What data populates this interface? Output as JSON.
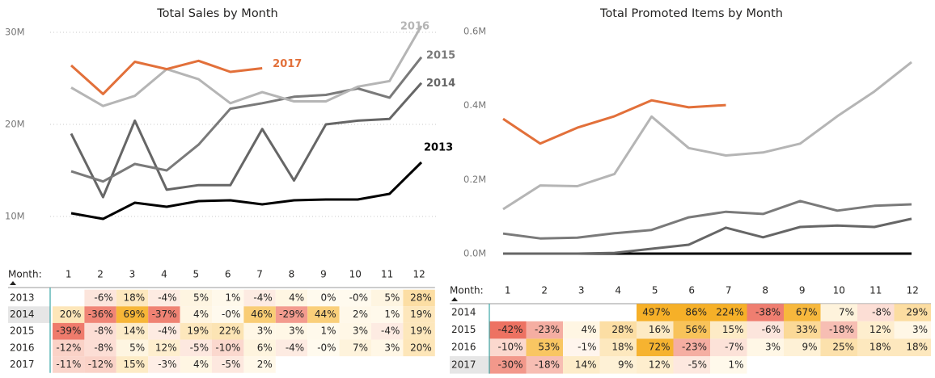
{
  "chart_data": [
    {
      "type": "line",
      "title": "Total Sales by Month",
      "grid": true,
      "end_labels": true,
      "x": [
        1,
        2,
        3,
        4,
        5,
        6,
        7,
        8,
        9,
        10,
        11,
        12
      ],
      "xlim": [
        1,
        12
      ],
      "ylim": [
        9000000,
        31000000
      ],
      "yticks": [
        {
          "value": 10000000,
          "label": "10M"
        },
        {
          "value": 20000000,
          "label": "20M"
        },
        {
          "value": 30000000,
          "label": "30M"
        }
      ],
      "series": [
        {
          "name": "2013",
          "color": "#000000",
          "values": [
            10350000,
            9740000,
            11490000,
            11050000,
            11670000,
            11750000,
            11320000,
            11750000,
            11840000,
            11840000,
            12460000,
            15880000
          ]
        },
        {
          "name": "2014",
          "color": "#666666",
          "values": [
            19000000,
            12100000,
            20400000,
            12900000,
            13400000,
            13400000,
            19500000,
            13900000,
            20000000,
            20400000,
            20600000,
            24500000
          ]
        },
        {
          "name": "2015",
          "color": "#7a7a7a",
          "values": [
            14900000,
            13800000,
            15700000,
            15000000,
            17800000,
            21700000,
            22300000,
            23000000,
            23200000,
            23900000,
            22900000,
            27300000
          ]
        },
        {
          "name": "2016",
          "color": "#b5b5b5",
          "values": [
            24000000,
            22000000,
            23100000,
            26000000,
            24900000,
            22300000,
            23500000,
            22500000,
            22500000,
            24100000,
            24700000,
            30700000
          ]
        },
        {
          "name": "2017",
          "color": "#e2703a",
          "values": [
            26400000,
            23300000,
            26800000,
            26000000,
            26900000,
            25700000,
            26100000,
            null,
            null,
            null,
            null,
            null
          ]
        }
      ]
    },
    {
      "type": "line",
      "title": "Total Promoted Items by Month",
      "grid": false,
      "end_labels": false,
      "x": [
        1,
        2,
        3,
        4,
        5,
        6,
        7,
        8,
        9,
        10,
        11,
        12
      ],
      "xlim": [
        1,
        12
      ],
      "ylim": [
        0,
        620000
      ],
      "yticks": [
        {
          "value": 0,
          "label": "0.0M"
        },
        {
          "value": 200000,
          "label": "0.2M"
        },
        {
          "value": 400000,
          "label": "0.4M"
        },
        {
          "value": 600000,
          "label": "0.6M"
        }
      ],
      "series": [
        {
          "name": "2013",
          "color": "#000000",
          "values": [
            0,
            0,
            0,
            0,
            0,
            0,
            0,
            0,
            0,
            0,
            0,
            0
          ]
        },
        {
          "name": "2014",
          "color": "#666666",
          "values": [
            0,
            0,
            0,
            2000,
            13000,
            24000,
            70000,
            44000,
            72000,
            76000,
            72000,
            94000
          ]
        },
        {
          "name": "2015",
          "color": "#7a7a7a",
          "values": [
            54000,
            41000,
            43000,
            55000,
            64000,
            98000,
            113000,
            107000,
            142000,
            116000,
            129000,
            133000
          ]
        },
        {
          "name": "2016",
          "color": "#b5b5b5",
          "values": [
            120000,
            184000,
            182000,
            215000,
            370000,
            285000,
            265000,
            273000,
            297000,
            371000,
            438000,
            517000
          ]
        },
        {
          "name": "2017",
          "color": "#e2703a",
          "values": [
            364000,
            297000,
            340000,
            371000,
            414000,
            395000,
            401000,
            null,
            null,
            null,
            null,
            null
          ]
        }
      ]
    }
  ],
  "tables": [
    {
      "header_label": "Month:",
      "columns": [
        1,
        2,
        3,
        4,
        5,
        6,
        7,
        8,
        9,
        10,
        11,
        12
      ],
      "rows": [
        {
          "label": "2013",
          "cells": [
            null,
            "-6%",
            "18%",
            "-4%",
            "5%",
            "1%",
            "-4%",
            "4%",
            "0%",
            "-0%",
            "5%",
            "28%"
          ]
        },
        {
          "label": "2014",
          "cells": [
            "20%",
            "-36%",
            "69%",
            "-37%",
            "4%",
            "-0%",
            "46%",
            "-29%",
            "44%",
            "2%",
            "1%",
            "19%"
          ]
        },
        {
          "label": "2015",
          "cells": [
            "-39%",
            "-8%",
            "14%",
            "-4%",
            "19%",
            "22%",
            "3%",
            "3%",
            "1%",
            "3%",
            "-4%",
            "19%"
          ]
        },
        {
          "label": "2016",
          "cells": [
            "-12%",
            "-8%",
            "5%",
            "12%",
            "-5%",
            "-10%",
            "6%",
            "-4%",
            "-0%",
            "7%",
            "3%",
            "20%"
          ]
        },
        {
          "label": "2017",
          "cells": [
            "-11%",
            "-12%",
            "15%",
            "-3%",
            "4%",
            "-5%",
            "2%",
            null,
            null,
            null,
            null,
            null
          ]
        }
      ]
    },
    {
      "header_label": "Month:",
      "columns": [
        1,
        2,
        3,
        4,
        5,
        6,
        7,
        8,
        9,
        10,
        11,
        12
      ],
      "rows": [
        {
          "label": "2014",
          "cells": [
            null,
            null,
            null,
            null,
            "497%",
            "86%",
            "224%",
            "-38%",
            "67%",
            "7%",
            "-8%",
            "29%"
          ]
        },
        {
          "label": "2015",
          "cells": [
            "-42%",
            "-23%",
            "4%",
            "28%",
            "16%",
            "56%",
            "15%",
            "-6%",
            "33%",
            "-18%",
            "12%",
            "3%"
          ]
        },
        {
          "label": "2016",
          "cells": [
            "-10%",
            "53%",
            "-1%",
            "18%",
            "72%",
            "-23%",
            "-7%",
            "3%",
            "9%",
            "25%",
            "18%",
            "18%"
          ]
        },
        {
          "label": "2017",
          "cells": [
            "-30%",
            "-18%",
            "14%",
            "9%",
            "12%",
            "-5%",
            "1%",
            null,
            null,
            null,
            null,
            null
          ]
        }
      ]
    }
  ]
}
